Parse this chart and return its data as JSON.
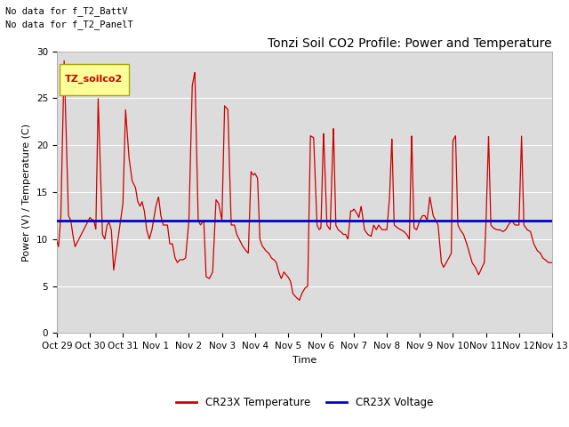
{
  "title": "Tonzi Soil CO2 Profile: Power and Temperature",
  "xlabel": "Time",
  "ylabel": "Power (V) / Temperature (C)",
  "ylim": [
    0,
    30
  ],
  "yticks": [
    0,
    5,
    10,
    15,
    20,
    25,
    30
  ],
  "xtick_labels": [
    "Oct 29",
    "Oct 30",
    "Oct 31",
    "Nov 1",
    "Nov 2",
    "Nov 3",
    "Nov 4",
    "Nov 5",
    "Nov 6",
    "Nov 7",
    "Nov 8",
    "Nov 9",
    "Nov 10",
    "Nov 11",
    "Nov 12",
    "Nov 13"
  ],
  "voltage_value": 12.0,
  "voltage_color": "#0000cc",
  "temp_color": "#cc0000",
  "bg_color": "#dcdcdc",
  "legend_box_color": "#ffff99",
  "legend_box_label": "TZ_soilco2",
  "no_data_text1": "No data for f_T2_BattV",
  "no_data_text2": "No data for f_T2_PanelT",
  "legend_temp_label": "CR23X Temperature",
  "legend_volt_label": "CR23X Voltage",
  "title_fontsize": 10,
  "axis_label_fontsize": 8,
  "tick_fontsize": 7.5,
  "annotation_fontsize": 7.5
}
